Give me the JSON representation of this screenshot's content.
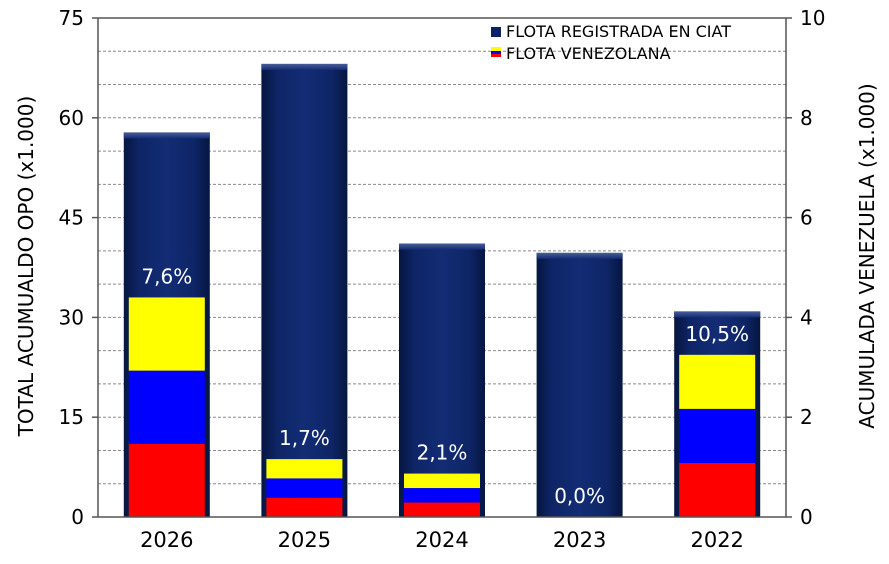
{
  "chart_data": {
    "type": "bar",
    "categories": [
      "2026",
      "2025",
      "2024",
      "2023",
      "2022"
    ],
    "series": [
      {
        "name": "FLOTA REGISTRADA EN CIAT",
        "values": [
          57.8,
          68.1,
          41.1,
          39.7,
          30.9
        ],
        "color": "#0d2366",
        "axis": "left"
      },
      {
        "name": "FLOTA VENEZOLANA",
        "values": [
          4.4,
          1.16,
          0.87,
          0.0,
          3.25
        ],
        "colors": [
          "#ff0000",
          "#0000ff",
          "#ffff00"
        ],
        "axis": "right"
      }
    ],
    "percent_labels": [
      "7,6%",
      "1,7%",
      "2,1%",
      "0,0%",
      "10,5%"
    ],
    "ylabel": "TOTAL ACUMUALDO OPO (x1.000)",
    "y2label": "ACUMULADA VENEZUELA (x1.000)",
    "ylim": [
      0,
      75
    ],
    "y2lim": [
      0,
      10
    ],
    "yticks": [
      "0",
      "15",
      "30",
      "45",
      "60",
      "75"
    ],
    "y2ticks": [
      "0",
      "2",
      "4",
      "6",
      "8",
      "10"
    ],
    "grid": true,
    "legend_position": "top-right"
  }
}
